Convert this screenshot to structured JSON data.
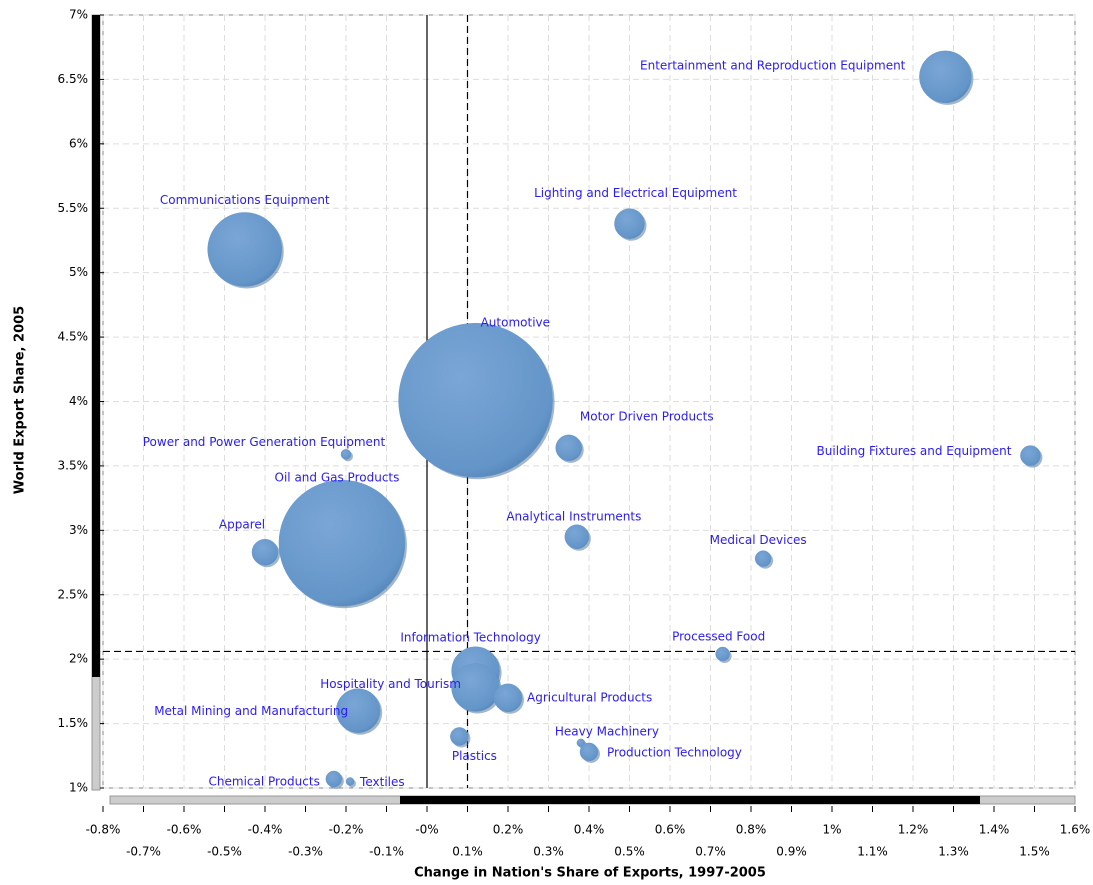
{
  "chart_data": {
    "type": "bubble",
    "x_label": "Change in Nation's Share of Exports, 1997-2005",
    "y_label": "World Export Share, 2005",
    "color": "#6699cc",
    "grid": true,
    "xlim": [
      -0.8,
      1.6
    ],
    "ylim": [
      1,
      7
    ],
    "xticks": [
      {
        "value": -0.8,
        "label": "-0.8%"
      },
      {
        "value": -0.7,
        "label": "-0.7%"
      },
      {
        "value": -0.6,
        "label": "-0.6%"
      },
      {
        "value": -0.5,
        "label": "-0.5%"
      },
      {
        "value": -0.4,
        "label": "-0.4%"
      },
      {
        "value": -0.3,
        "label": "-0.3%"
      },
      {
        "value": -0.2,
        "label": "-0.2%"
      },
      {
        "value": -0.1,
        "label": "-0.1%"
      },
      {
        "value": 0,
        "label": "-0%"
      },
      {
        "value": 0.1,
        "label": "0.1%"
      },
      {
        "value": 0.2,
        "label": "0.2%"
      },
      {
        "value": 0.3,
        "label": "0.3%"
      },
      {
        "value": 0.4,
        "label": "0.4%"
      },
      {
        "value": 0.5,
        "label": "0.5%"
      },
      {
        "value": 0.6,
        "label": "0.6%"
      },
      {
        "value": 0.7,
        "label": "0.7%"
      },
      {
        "value": 0.8,
        "label": "0.8%"
      },
      {
        "value": 0.9,
        "label": "0.9%"
      },
      {
        "value": 1,
        "label": "1%"
      },
      {
        "value": 1.1,
        "label": "1.1%"
      },
      {
        "value": 1.2,
        "label": "1.2%"
      },
      {
        "value": 1.3,
        "label": "1.3%"
      },
      {
        "value": 1.4,
        "label": "1.4%"
      },
      {
        "value": 1.5,
        "label": "1.5%"
      },
      {
        "value": 1.6,
        "label": "1.6%"
      }
    ],
    "yticks": [
      {
        "value": 1,
        "label": "1%"
      },
      {
        "value": 1.5,
        "label": "1.5%"
      },
      {
        "value": 2,
        "label": "2%"
      },
      {
        "value": 2.5,
        "label": "2.5%"
      },
      {
        "value": 3,
        "label": "3%"
      },
      {
        "value": 3.5,
        "label": "3.5%"
      },
      {
        "value": 4,
        "label": "4%"
      },
      {
        "value": 4.5,
        "label": "4.5%"
      },
      {
        "value": 5,
        "label": "5%"
      },
      {
        "value": 5.5,
        "label": "5.5%"
      },
      {
        "value": 6,
        "label": "6%"
      },
      {
        "value": 6.5,
        "label": "6.5%"
      },
      {
        "value": 7,
        "label": "7%"
      }
    ],
    "reference_lines": [
      {
        "axis": "x",
        "value": 0,
        "style": "solid"
      },
      {
        "axis": "x",
        "value": 0.1,
        "style": "dashed"
      },
      {
        "axis": "y",
        "value": 2.06,
        "style": "dashed"
      }
    ],
    "series": [
      {
        "labels": [
          "Entertainment and Reproduction Equipment",
          "Communications Equipment",
          "Lighting and Electrical Equipment",
          "Automotive",
          "Motor Driven Products",
          "Building Fixtures and Equipment",
          "Power and Power Generation Equipment",
          "Oil and Gas Products",
          "Apparel",
          "Analytical Instruments",
          "Medical Devices",
          "Processed Food",
          "Information Technology",
          "Hospitality and Tourism",
          "Agricultural Products",
          "Metal Mining and Manufacturing",
          "Plastics",
          "Heavy Machinery",
          "Production Technology",
          "Chemical Products",
          "Textiles"
        ],
        "x": [
          1.28,
          -0.45,
          0.5,
          0.12,
          0.35,
          1.49,
          -0.2,
          -0.21,
          -0.4,
          0.37,
          0.83,
          0.73,
          0.12,
          0.12,
          0.2,
          -0.17,
          0.08,
          0.38,
          0.4,
          -0.23,
          -0.19
        ],
        "y": [
          6.52,
          5.18,
          5.38,
          4.01,
          3.64,
          3.58,
          3.59,
          2.9,
          2.83,
          2.95,
          2.78,
          2.04,
          1.91,
          1.78,
          1.7,
          1.6,
          1.4,
          1.35,
          1.28,
          1.07,
          1.05
        ],
        "sizes": [
          26,
          37,
          15,
          77,
          13,
          10,
          5,
          63,
          13,
          12,
          8,
          7,
          24,
          24,
          14,
          22,
          9,
          4,
          9,
          8,
          4
        ]
      }
    ]
  }
}
